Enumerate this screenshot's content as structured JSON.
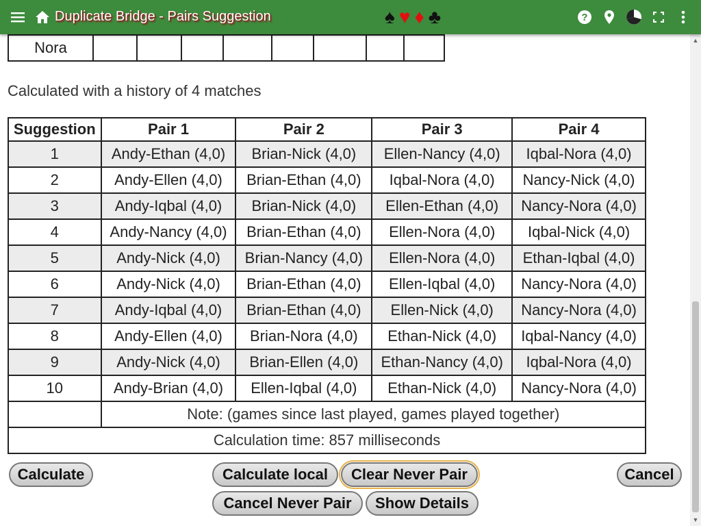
{
  "appbar": {
    "title": "Duplicate Bridge - Pairs Suggestion",
    "menu_icon": "menu-icon",
    "home_icon": "home-icon",
    "suits": [
      "♠",
      "♥",
      "♦",
      "♣"
    ],
    "right_icons": [
      "help-icon",
      "location-pin-icon",
      "theme-pie-icon",
      "fullscreen-icon",
      "more-vert-icon"
    ]
  },
  "top_table": {
    "name": "Nora",
    "empty_cells": 8
  },
  "info_text": "Calculated with a history of 4 matches",
  "suggestions": {
    "headers": [
      "Suggestion",
      "Pair 1",
      "Pair 2",
      "Pair 3",
      "Pair 4"
    ],
    "rows": [
      [
        "1",
        "Andy-Ethan (4,0)",
        "Brian-Nick (4,0)",
        "Ellen-Nancy (4,0)",
        "Iqbal-Nora (4,0)"
      ],
      [
        "2",
        "Andy-Ellen (4,0)",
        "Brian-Ethan (4,0)",
        "Iqbal-Nora (4,0)",
        "Nancy-Nick (4,0)"
      ],
      [
        "3",
        "Andy-Iqbal (4,0)",
        "Brian-Nick (4,0)",
        "Ellen-Ethan (4,0)",
        "Nancy-Nora (4,0)"
      ],
      [
        "4",
        "Andy-Nancy (4,0)",
        "Brian-Ethan (4,0)",
        "Ellen-Nora (4,0)",
        "Iqbal-Nick (4,0)"
      ],
      [
        "5",
        "Andy-Nick (4,0)",
        "Brian-Nancy (4,0)",
        "Ellen-Nora (4,0)",
        "Ethan-Iqbal (4,0)"
      ],
      [
        "6",
        "Andy-Nick (4,0)",
        "Brian-Ethan (4,0)",
        "Ellen-Iqbal (4,0)",
        "Nancy-Nora (4,0)"
      ],
      [
        "7",
        "Andy-Iqbal (4,0)",
        "Brian-Ethan (4,0)",
        "Ellen-Nick (4,0)",
        "Nancy-Nora (4,0)"
      ],
      [
        "8",
        "Andy-Ellen (4,0)",
        "Brian-Nora (4,0)",
        "Ethan-Nick (4,0)",
        "Iqbal-Nancy (4,0)"
      ],
      [
        "9",
        "Andy-Nick (4,0)",
        "Brian-Ellen (4,0)",
        "Ethan-Nancy (4,0)",
        "Iqbal-Nora (4,0)"
      ],
      [
        "10",
        "Andy-Brian (4,0)",
        "Ellen-Iqbal (4,0)",
        "Ethan-Nick (4,0)",
        "Nancy-Nora (4,0)"
      ]
    ],
    "note": "Note: (games since last played, games played together)",
    "calc_time": "Calculation time: 857 milliseconds"
  },
  "buttons": {
    "calculate": "Calculate",
    "calculate_local": "Calculate local",
    "clear_never_pair": "Clear Never Pair",
    "cancel": "Cancel",
    "cancel_never_pair": "Cancel Never Pair",
    "show_details": "Show Details"
  },
  "colors": {
    "appbar": "#3d8b3d",
    "title_shadow": "#8b1e1e",
    "suit_red": "#e01010",
    "row_alt": "#ececec",
    "focus_outline": "#e8b24a"
  }
}
